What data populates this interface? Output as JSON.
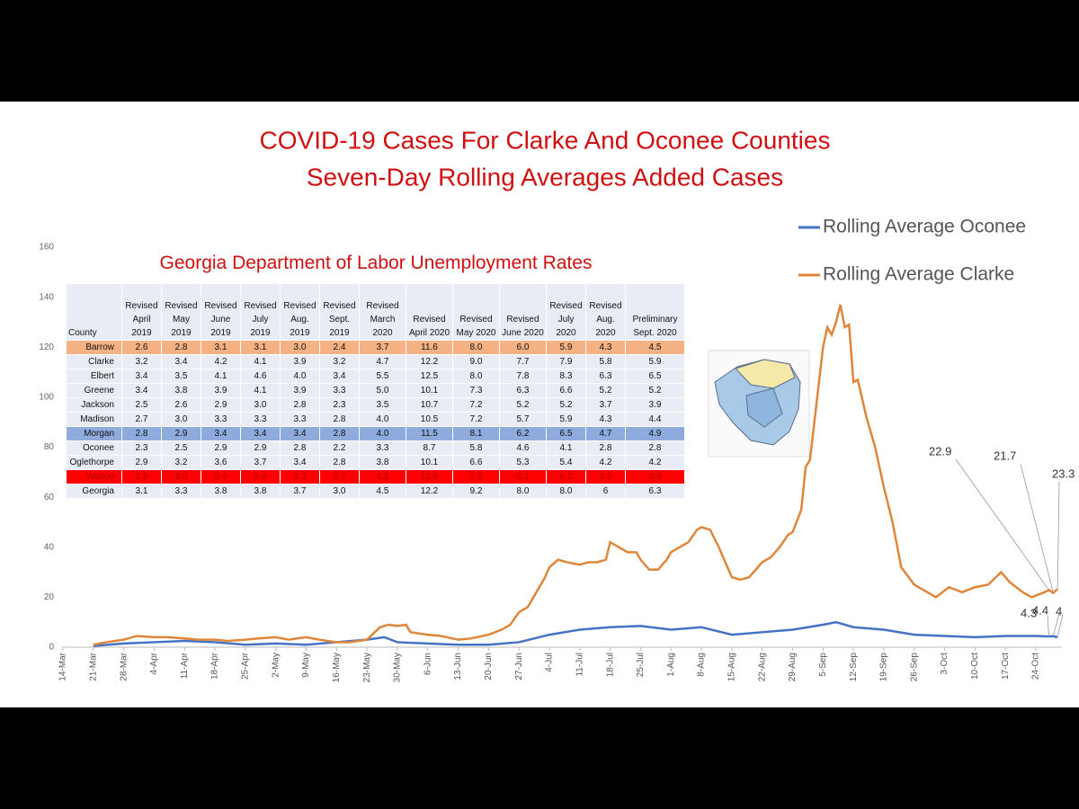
{
  "chart_data": {
    "type": "line",
    "title": [
      "COVID-19 Cases For Clarke And Oconee Counties",
      "Seven-Day Rolling Averages Added Cases"
    ],
    "xlim": [
      0,
      230
    ],
    "xticks": [
      {
        "value": 0,
        "label": "14-Mar"
      },
      {
        "value": 7,
        "label": "21-Mar"
      },
      {
        "value": 14,
        "label": "28-Mar"
      },
      {
        "value": 21,
        "label": "4-Apr"
      },
      {
        "value": 28,
        "label": "11-Apr"
      },
      {
        "value": 35,
        "label": "18-Apr"
      },
      {
        "value": 42,
        "label": "25-Apr"
      },
      {
        "value": 49,
        "label": "2-May"
      },
      {
        "value": 56,
        "label": "9-May"
      },
      {
        "value": 63,
        "label": "16-May"
      },
      {
        "value": 70,
        "label": "23-May"
      },
      {
        "value": 77,
        "label": "30-May"
      },
      {
        "value": 84,
        "label": "6-Jun"
      },
      {
        "value": 91,
        "label": "13-Jun"
      },
      {
        "value": 98,
        "label": "20-Jun"
      },
      {
        "value": 105,
        "label": "27-Jun"
      },
      {
        "value": 112,
        "label": "4-Jul"
      },
      {
        "value": 119,
        "label": "11-Jul"
      },
      {
        "value": 126,
        "label": "18-Jul"
      },
      {
        "value": 133,
        "label": "25-Jul"
      },
      {
        "value": 140,
        "label": "1-Aug"
      },
      {
        "value": 147,
        "label": "8-Aug"
      },
      {
        "value": 154,
        "label": "15-Aug"
      },
      {
        "value": 161,
        "label": "22-Aug"
      },
      {
        "value": 168,
        "label": "29-Aug"
      },
      {
        "value": 175,
        "label": "5-Sep"
      },
      {
        "value": 182,
        "label": "12-Sep"
      },
      {
        "value": 189,
        "label": "19-Sep"
      },
      {
        "value": 196,
        "label": "26-Sep"
      },
      {
        "value": 203,
        "label": "3-Oct"
      },
      {
        "value": 210,
        "label": "10-Oct"
      },
      {
        "value": 217,
        "label": "17-Oct"
      },
      {
        "value": 224,
        "label": "24-Oct"
      }
    ],
    "ylim": [
      0,
      160
    ],
    "yticks": [
      0,
      20,
      40,
      60,
      80,
      100,
      120,
      140,
      160
    ],
    "grid": false,
    "legend": "top-right",
    "series": [
      {
        "name": "Rolling Average Oconee",
        "color": "#4472c4",
        "x": [
          7,
          14,
          21,
          28,
          35,
          42,
          49,
          56,
          63,
          70,
          74,
          77,
          84,
          91,
          98,
          105,
          112,
          119,
          126,
          133,
          140,
          147,
          154,
          161,
          168,
          175,
          178,
          182,
          189,
          196,
          203,
          210,
          217,
          224,
          227,
          228,
          229
        ],
        "values": [
          0.5,
          1.5,
          2,
          2.5,
          2,
          1,
          1.5,
          1,
          2,
          3,
          4,
          2,
          1.5,
          1,
          1,
          2,
          5,
          7,
          8,
          8.5,
          7,
          8,
          5,
          6,
          7,
          9,
          10,
          8,
          7,
          5,
          4.5,
          4,
          4.5,
          4.5,
          4.3,
          4.4,
          4.0
        ]
      },
      {
        "name": "Rolling Average Clarke",
        "color": "#e0863a",
        "x": [
          7,
          10,
          14,
          17,
          21,
          24,
          28,
          31,
          35,
          38,
          42,
          45,
          49,
          52,
          56,
          59,
          63,
          66,
          70,
          73,
          75,
          77,
          79,
          80,
          84,
          87,
          91,
          94,
          98,
          101,
          103,
          105,
          107,
          109,
          111,
          112,
          114,
          116,
          119,
          121,
          123,
          125,
          126,
          128,
          130,
          132,
          133,
          135,
          137,
          139,
          140,
          142,
          144,
          146,
          147,
          149,
          151,
          153,
          154,
          156,
          158,
          160,
          161,
          163,
          165,
          167,
          168,
          170,
          171,
          172,
          173,
          174,
          175,
          176,
          177,
          178,
          179,
          180,
          181,
          182,
          183,
          185,
          187,
          189,
          191,
          193,
          196,
          199,
          201,
          204,
          207,
          210,
          213,
          216,
          218,
          221,
          223,
          226,
          227,
          228,
          229
        ],
        "values": [
          1,
          2,
          3,
          4.5,
          4,
          4,
          3.5,
          3,
          3,
          2.5,
          3,
          3.5,
          4,
          3,
          4,
          3,
          2,
          2,
          3,
          8,
          9,
          8.5,
          9,
          6,
          5,
          4.5,
          3,
          3.5,
          5,
          7,
          9,
          14,
          16,
          22,
          28,
          32,
          35,
          34,
          33,
          34,
          34,
          35,
          42,
          40,
          38,
          38,
          35,
          31,
          31,
          35,
          38,
          40,
          42,
          47,
          48,
          47,
          40,
          32,
          28,
          27,
          28,
          32,
          34,
          36,
          40,
          45,
          46,
          55,
          72,
          75,
          90,
          105,
          120,
          128,
          125,
          130,
          137,
          128,
          129,
          106,
          107,
          92,
          80,
          64,
          50,
          32,
          25,
          22,
          20,
          24,
          22,
          24,
          25,
          30,
          26,
          22,
          20,
          22,
          22.9,
          21.7,
          23.3
        ]
      }
    ]
  },
  "table": {
    "title": "Georgia Department of Labor Unemployment Rates",
    "columns": [
      "County",
      "Revised April 2019",
      "Revised May 2019",
      "Revised June 2019",
      "Revised July 2019",
      "Revised Aug. 2019",
      "Revised Sept. 2019",
      "Revised March 2020",
      "Revised April 2020",
      "Revised May 2020",
      "Revised June 2020",
      "Revised July 2020",
      "Revised Aug. 2020",
      "Preliminary Sept. 2020"
    ],
    "rows": [
      [
        "Barrow",
        "2.6",
        "2.8",
        "3.1",
        "3.1",
        "3.0",
        "2.4",
        "3.7",
        "11.6",
        "8.0",
        "6.0",
        "5.9",
        "4.3",
        "4.5"
      ],
      [
        "Clarke",
        "3.2",
        "3.4",
        "4.2",
        "4.1",
        "3.9",
        "3.2",
        "4.7",
        "12.2",
        "9.0",
        "7.7",
        "7.9",
        "5.8",
        "5.9"
      ],
      [
        "Elbert",
        "3.4",
        "3.5",
        "4.1",
        "4.6",
        "4.0",
        "3.4",
        "5.5",
        "12.5",
        "8.0",
        "7.8",
        "8.3",
        "6.3",
        "6.5"
      ],
      [
        "Greene",
        "3.4",
        "3.8",
        "3.9",
        "4.1",
        "3.9",
        "3.3",
        "5.0",
        "10.1",
        "7.3",
        "6.3",
        "6.6",
        "5.2",
        "5.2"
      ],
      [
        "Jackson",
        "2.5",
        "2.6",
        "2.9",
        "3.0",
        "2.8",
        "2.3",
        "3.5",
        "10.7",
        "7.2",
        "5.2",
        "5.2",
        "3.7",
        "3.9"
      ],
      [
        "Madison",
        "2.7",
        "3.0",
        "3.3",
        "3.3",
        "3.3",
        "2.8",
        "4.0",
        "10.5",
        "7.2",
        "5.7",
        "5.9",
        "4.3",
        "4.4"
      ],
      [
        "Morgan",
        "2.8",
        "2.9",
        "3.4",
        "3.4",
        "3.4",
        "2.8",
        "4.0",
        "11.5",
        "8.1",
        "6.2",
        "6.5",
        "4.7",
        "4.9"
      ],
      [
        "Oconee",
        "2.3",
        "2.5",
        "2.9",
        "2.9",
        "2.8",
        "2.2",
        "3.3",
        "8.7",
        "5.8",
        "4.6",
        "4.1",
        "2.8",
        "2.8"
      ],
      [
        "Oglethorpe",
        "2.9",
        "3.2",
        "3.6",
        "3.7",
        "3.4",
        "2.8",
        "3.8",
        "10.1",
        "6.6",
        "5.3",
        "5.4",
        "4.2",
        "4.2"
      ],
      [
        "Walton",
        "2.8",
        "3.0",
        "3.4",
        "3.4",
        "3.3",
        "2.7",
        "4.1",
        "12.0",
        "7.8",
        "6.1",
        "6.2",
        "4.6",
        "4.9"
      ],
      [
        "Georgia",
        "3.1",
        "3.3",
        "3.8",
        "3.8",
        "3.7",
        "3.0",
        "4.5",
        "12.2",
        "9.2",
        "8.0",
        "8.0",
        "6",
        "6.3"
      ]
    ]
  }
}
